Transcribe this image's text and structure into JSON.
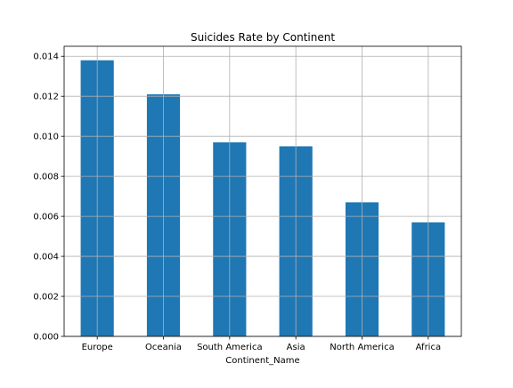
{
  "chart_data": {
    "type": "bar",
    "title": "Suicides Rate by Continent",
    "xlabel": "Continent_Name",
    "ylabel": "",
    "categories": [
      "Europe",
      "Oceania",
      "South America",
      "Asia",
      "North America",
      "Africa"
    ],
    "values": [
      0.0138,
      0.0121,
      0.0097,
      0.0095,
      0.0067,
      0.0057
    ],
    "ylim": [
      0,
      0.0145
    ],
    "yticks": [
      "0.000",
      "0.002",
      "0.004",
      "0.006",
      "0.008",
      "0.010",
      "0.012",
      "0.014"
    ],
    "grid": true,
    "bar_color": "#1f77b4",
    "grid_color": "#b0b0b0"
  }
}
